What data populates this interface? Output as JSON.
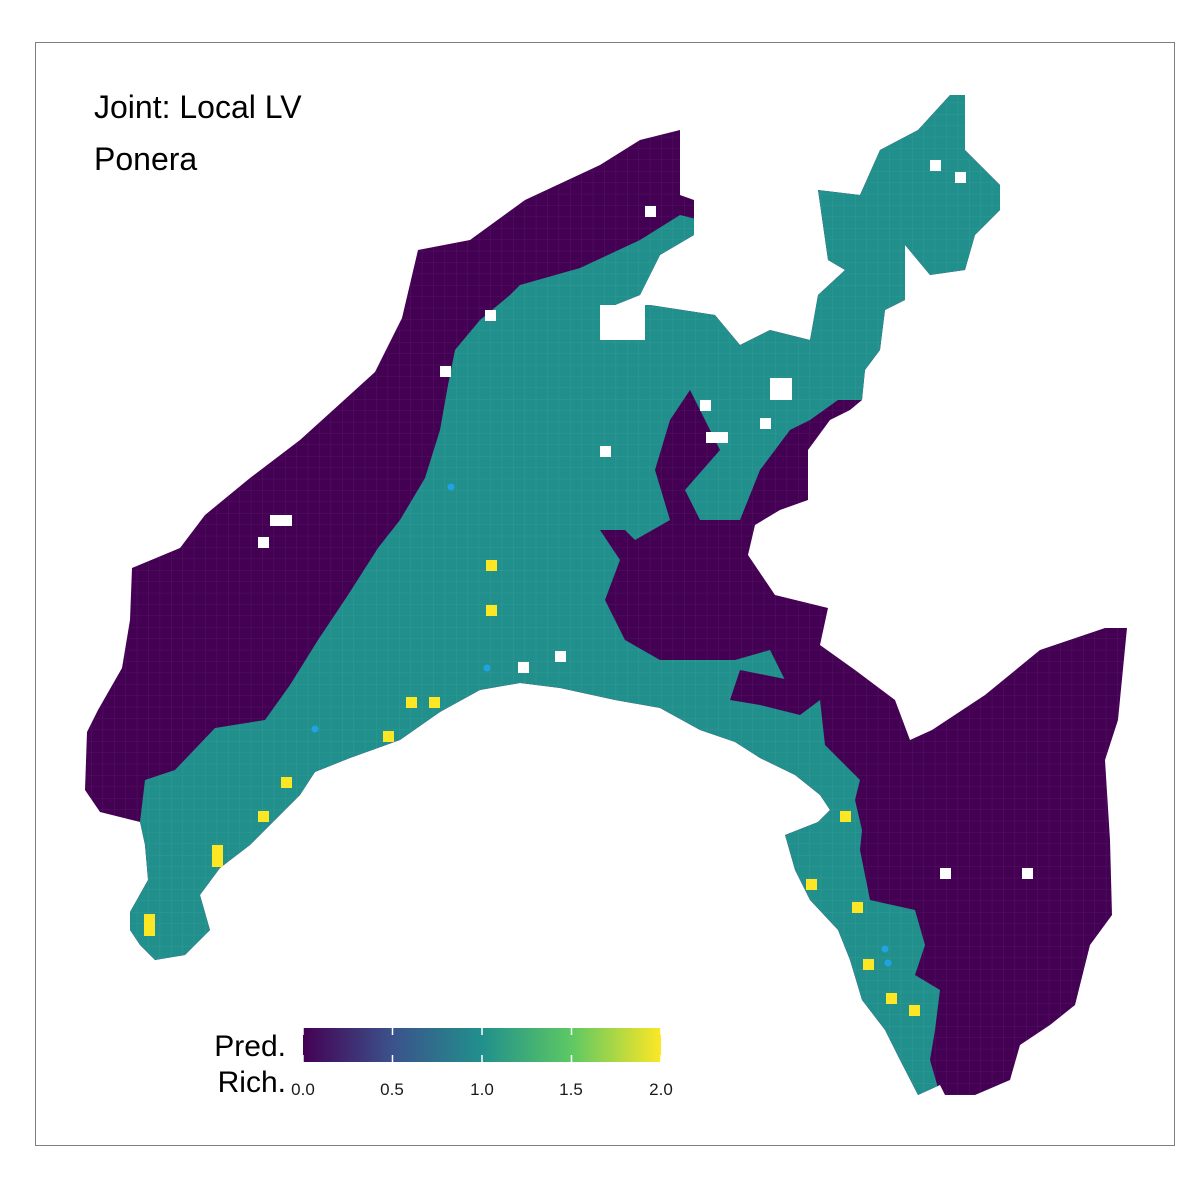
{
  "titles": {
    "line1": "Joint: Local LV",
    "line2": "Ponera"
  },
  "legend": {
    "title_line1": "Pred.",
    "title_line2": "Rich.",
    "ticks": [
      "0.0",
      "0.5",
      "1.0",
      "1.5",
      "2.0"
    ],
    "range": [
      0,
      2
    ],
    "colormap": "viridis",
    "colors": [
      "#440154",
      "#3b528b",
      "#21908c",
      "#5dc863",
      "#fde725"
    ]
  },
  "map": {
    "fill_colors": {
      "richness_0": "#440154",
      "richness_1": "#21908c",
      "richness_2": "#fde725"
    },
    "observation_point_color": "#1fa2e6"
  }
}
